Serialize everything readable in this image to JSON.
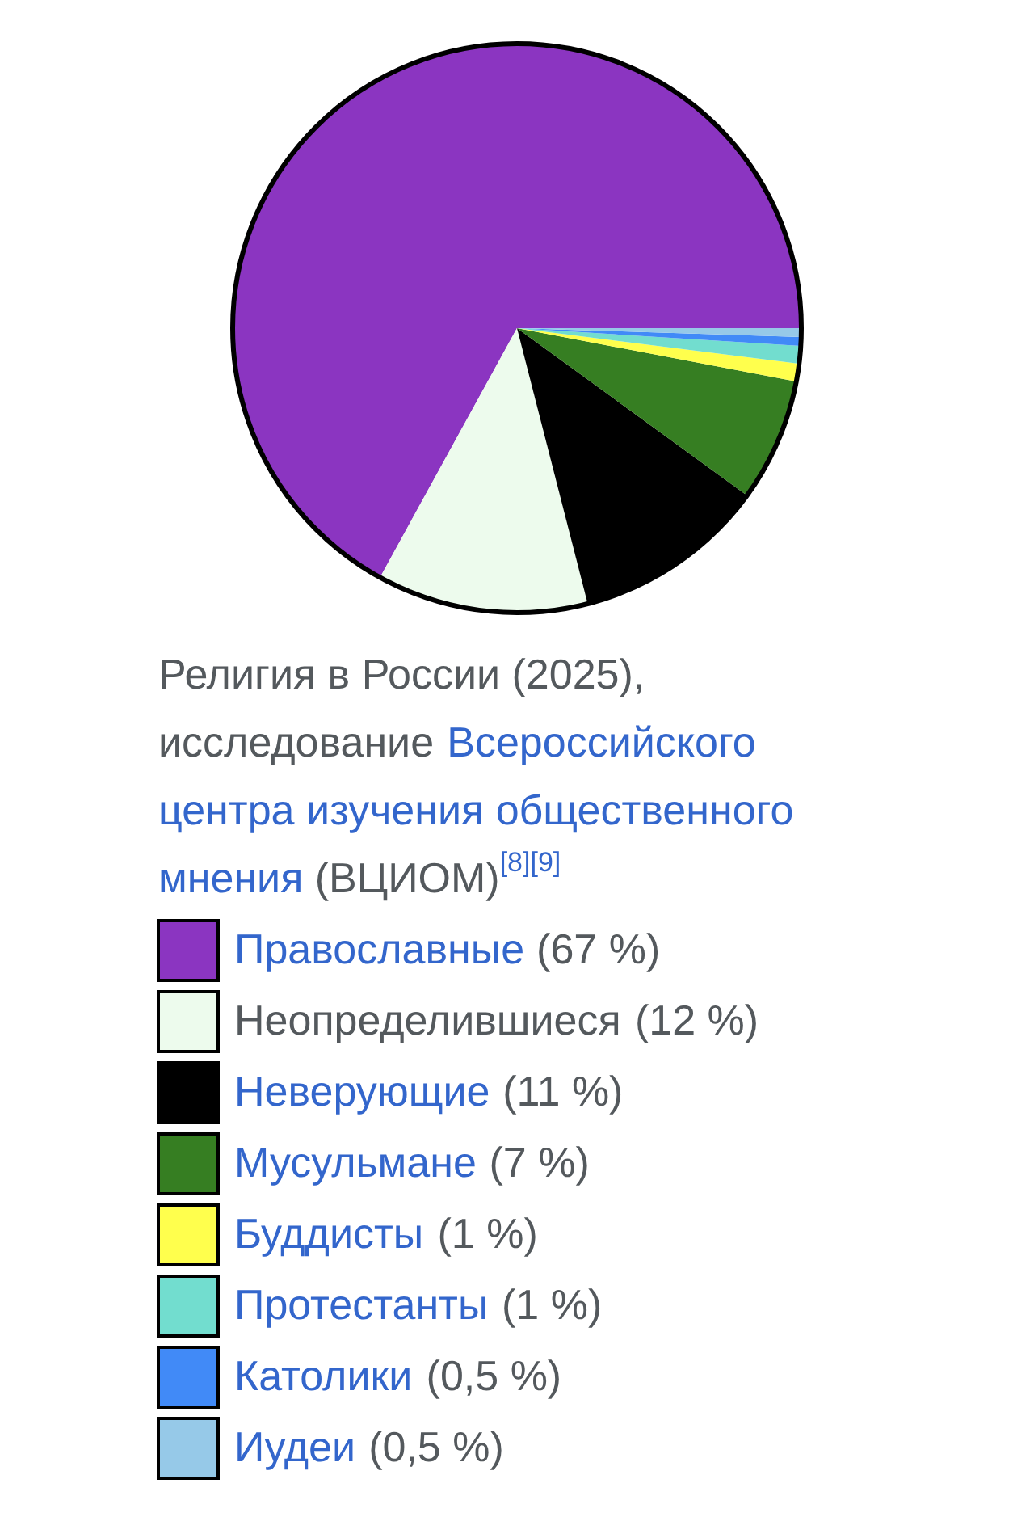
{
  "chart_data": {
    "type": "pie",
    "title": "Религия в России (2025), исследование Всероссийского центра изучения общественного мнения (ВЦИОМ)$^{[8][9]}$",
    "categories": [
      "Православные",
      "Неопределившиеся",
      "Неверующие",
      "Мусульмане",
      "Буддисты",
      "Протестанты",
      "Католики",
      "Иудеи"
    ],
    "values": [
      67,
      12,
      11,
      7,
      1,
      1,
      0.5,
      0.5
    ],
    "colors": [
      "#8b35c1",
      "#edfbed",
      "#000000",
      "#367e22",
      "#ffff4d",
      "#72ddcf",
      "#418af7",
      "#96c9e8"
    ],
    "value_labels": [
      "(67 %)",
      "(12 %)",
      "(11 %)",
      "(7 %)",
      "(1 %)",
      "(1 %)",
      "(0,5 %)",
      "(0,5 %)"
    ],
    "legend": "bottom"
  }
}
